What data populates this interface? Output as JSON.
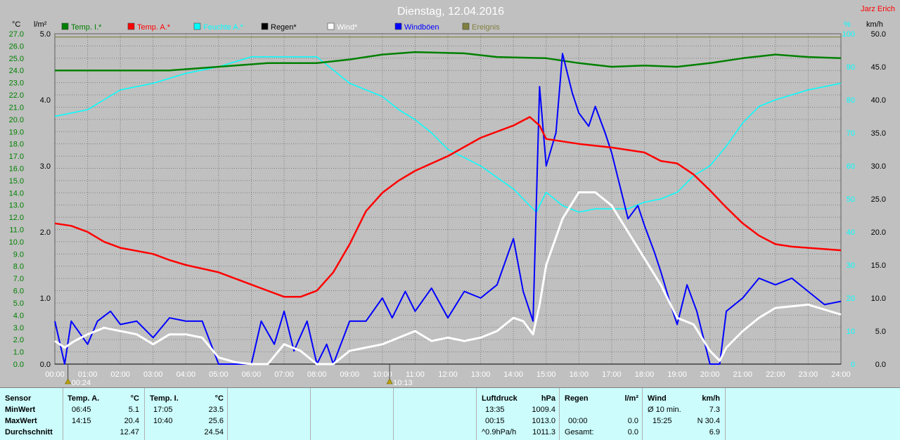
{
  "title": "Dienstag, 12.04.2016",
  "author": "Jarz Erich",
  "colors": {
    "temp_i": "#008000",
    "temp_a": "#ff0000",
    "feuchte_a": "#00ffff",
    "regen": "#000000",
    "wind": "#ffffff",
    "windboeen": "#0000ff",
    "ereignis": "#808040",
    "plot_bg": "#c0c0c0",
    "stats_bg": "#ccfcfc"
  },
  "axes": {
    "unit_temp": "°C",
    "unit_rain": "l/m²",
    "unit_hum": "%",
    "unit_wind": "km/h",
    "temp_labels": [
      "27.0",
      "26.0",
      "25.0",
      "24.0",
      "23.0",
      "22.0",
      "21.0",
      "20.0",
      "19.0",
      "18.0",
      "17.0",
      "16.0",
      "15.0",
      "14.0",
      "13.0",
      "12.0",
      "11.0",
      "10.0",
      "9.0",
      "8.0",
      "7.0",
      "6.0",
      "5.0",
      "4.0",
      "3.0",
      "2.0",
      "1.0",
      "0.0"
    ],
    "rain_labels": [
      "5.0",
      "4.0",
      "3.0",
      "2.0",
      "1.0",
      "0.0"
    ],
    "hum_labels": [
      "100",
      "90",
      "80",
      "70",
      "60",
      "50",
      "40",
      "30",
      "20",
      "10",
      "0"
    ],
    "wind_labels": [
      "50.0",
      "45.0",
      "40.0",
      "35.0",
      "30.0",
      "25.0",
      "20.0",
      "15.0",
      "10.0",
      "5.0",
      "0.0"
    ],
    "time_labels": [
      "00:00",
      "01:00",
      "02:00",
      "03:00",
      "04:00",
      "05:00",
      "06:00",
      "07:00",
      "08:00",
      "09:00",
      "10:00",
      "11:00",
      "12:00",
      "13:00",
      "14:00",
      "15:00",
      "16:00",
      "17:00",
      "18:00",
      "19:00",
      "20:00",
      "21:00",
      "22:00",
      "23:00",
      "24:00"
    ],
    "markers": [
      {
        "time": "00:24",
        "hour": 0.4
      },
      {
        "time": "10:13",
        "hour": 10.22
      }
    ]
  },
  "chart_data": {
    "type": "line",
    "title": "Dienstag, 12.04.2016",
    "x_unit": "hours",
    "xlim": [
      0,
      24
    ],
    "y_temp_lim": [
      0,
      27
    ],
    "y_rain_lim": [
      0,
      5
    ],
    "y_hum_lim": [
      0,
      100
    ],
    "y_wind_lim": [
      0,
      50
    ],
    "grid": true,
    "legend_position": "top",
    "series": [
      {
        "name": "Temp. I.*",
        "axis": "temp",
        "color": "#008000",
        "points": [
          [
            0,
            24.0
          ],
          [
            2,
            24.0
          ],
          [
            3.5,
            24.0
          ],
          [
            5,
            24.3
          ],
          [
            6.5,
            24.6
          ],
          [
            8,
            24.6
          ],
          [
            9,
            24.9
          ],
          [
            10,
            25.3
          ],
          [
            11,
            25.5
          ],
          [
            12.5,
            25.4
          ],
          [
            13.5,
            25.1
          ],
          [
            15,
            25.0
          ],
          [
            16,
            24.6
          ],
          [
            17,
            24.3
          ],
          [
            18,
            24.4
          ],
          [
            19,
            24.3
          ],
          [
            20,
            24.6
          ],
          [
            21,
            25.0
          ],
          [
            22,
            25.3
          ],
          [
            23,
            25.1
          ],
          [
            24,
            25.0
          ]
        ]
      },
      {
        "name": "Temp. A.*",
        "axis": "temp",
        "color": "#ff0000",
        "points": [
          [
            0,
            11.5
          ],
          [
            0.5,
            11.3
          ],
          [
            1,
            10.8
          ],
          [
            1.5,
            10.0
          ],
          [
            2,
            9.5
          ],
          [
            3,
            9.0
          ],
          [
            3.5,
            8.5
          ],
          [
            4,
            8.1
          ],
          [
            5,
            7.5
          ],
          [
            6,
            6.5
          ],
          [
            7,
            5.5
          ],
          [
            7.5,
            5.5
          ],
          [
            8,
            6.0
          ],
          [
            8.5,
            7.5
          ],
          [
            9,
            9.8
          ],
          [
            9.5,
            12.5
          ],
          [
            10,
            14.0
          ],
          [
            10.5,
            15.0
          ],
          [
            11,
            15.8
          ],
          [
            12,
            17.0
          ],
          [
            13,
            18.5
          ],
          [
            14,
            19.5
          ],
          [
            14.5,
            20.2
          ],
          [
            14.8,
            19.5
          ],
          [
            15,
            18.4
          ],
          [
            15.5,
            18.2
          ],
          [
            16,
            18.0
          ],
          [
            17,
            17.7
          ],
          [
            17.5,
            17.5
          ],
          [
            18,
            17.3
          ],
          [
            18.5,
            16.6
          ],
          [
            19,
            16.4
          ],
          [
            19.5,
            15.5
          ],
          [
            20,
            14.2
          ],
          [
            20.5,
            12.8
          ],
          [
            21,
            11.5
          ],
          [
            21.5,
            10.5
          ],
          [
            22,
            9.8
          ],
          [
            22.5,
            9.6
          ],
          [
            23,
            9.5
          ],
          [
            23.5,
            9.4
          ],
          [
            24,
            9.3
          ]
        ]
      },
      {
        "name": "Feuchte A.*",
        "axis": "hum",
        "color": "#00ffff",
        "points": [
          [
            0,
            75
          ],
          [
            1,
            77
          ],
          [
            2,
            83
          ],
          [
            3,
            85
          ],
          [
            4,
            88
          ],
          [
            5,
            90
          ],
          [
            6,
            93
          ],
          [
            7,
            93
          ],
          [
            8,
            93
          ],
          [
            8.5,
            89
          ],
          [
            9,
            85
          ],
          [
            10,
            81
          ],
          [
            10.5,
            77
          ],
          [
            11,
            74
          ],
          [
            11.5,
            70
          ],
          [
            12,
            65
          ],
          [
            13,
            60
          ],
          [
            14,
            53
          ],
          [
            14.3,
            50
          ],
          [
            14.7,
            46
          ],
          [
            15,
            52
          ],
          [
            15.5,
            48
          ],
          [
            16,
            46
          ],
          [
            16.5,
            47
          ],
          [
            17,
            47
          ],
          [
            17.5,
            47
          ],
          [
            18,
            49
          ],
          [
            18.5,
            50
          ],
          [
            19,
            52
          ],
          [
            19.5,
            57
          ],
          [
            20,
            60
          ],
          [
            20.5,
            66
          ],
          [
            21,
            73
          ],
          [
            21.5,
            78
          ],
          [
            22,
            80
          ],
          [
            23,
            83
          ],
          [
            24,
            85
          ]
        ]
      },
      {
        "name": "Regen*",
        "axis": "rain",
        "color": "#000000",
        "points": [
          [
            0,
            0
          ],
          [
            24,
            0
          ]
        ]
      },
      {
        "name": "Wind*",
        "axis": "wind",
        "color": "#ffffff",
        "points": [
          [
            0,
            3.5
          ],
          [
            0.3,
            2.5
          ],
          [
            0.6,
            3.5
          ],
          [
            1,
            4.5
          ],
          [
            1.5,
            5.5
          ],
          [
            2,
            5.0
          ],
          [
            2.5,
            4.5
          ],
          [
            3,
            3.0
          ],
          [
            3.5,
            4.5
          ],
          [
            4,
            4.5
          ],
          [
            4.5,
            4.0
          ],
          [
            5,
            1.0
          ],
          [
            5.5,
            0.3
          ],
          [
            6,
            0.0
          ],
          [
            6.5,
            0.0
          ],
          [
            7,
            3.0
          ],
          [
            7.5,
            2.0
          ],
          [
            8,
            0.0
          ],
          [
            8.5,
            0.0
          ],
          [
            9,
            2.0
          ],
          [
            9.5,
            2.5
          ],
          [
            10,
            3.0
          ],
          [
            11,
            5.0
          ],
          [
            11.5,
            3.5
          ],
          [
            12,
            4.0
          ],
          [
            12.5,
            3.5
          ],
          [
            13,
            4.0
          ],
          [
            13.5,
            5.0
          ],
          [
            14,
            7.0
          ],
          [
            14.3,
            6.5
          ],
          [
            14.6,
            4.5
          ],
          [
            14.8,
            9.0
          ],
          [
            15,
            15.0
          ],
          [
            15.5,
            22.0
          ],
          [
            16,
            26.0
          ],
          [
            16.5,
            26.0
          ],
          [
            17,
            24.0
          ],
          [
            17.5,
            20.0
          ],
          [
            18,
            16.0
          ],
          [
            18.5,
            12.0
          ],
          [
            19,
            7.0
          ],
          [
            19.5,
            6.0
          ],
          [
            20,
            2.0
          ],
          [
            20.3,
            0.5
          ],
          [
            20.5,
            2.5
          ],
          [
            21,
            5.0
          ],
          [
            21.5,
            7.0
          ],
          [
            22,
            8.5
          ],
          [
            23,
            9.0
          ],
          [
            24,
            7.5
          ]
        ]
      },
      {
        "name": "Windböen",
        "axis": "wind",
        "color": "#0000ff",
        "points": [
          [
            0,
            6.5
          ],
          [
            0.3,
            0
          ],
          [
            0.5,
            6.5
          ],
          [
            1,
            3
          ],
          [
            1.3,
            6.5
          ],
          [
            1.7,
            8
          ],
          [
            2,
            6
          ],
          [
            2.5,
            6.5
          ],
          [
            3,
            4
          ],
          [
            3.5,
            7
          ],
          [
            4,
            6.5
          ],
          [
            4.5,
            6.5
          ],
          [
            5,
            0
          ],
          [
            5.5,
            0
          ],
          [
            6,
            0
          ],
          [
            6.3,
            6.5
          ],
          [
            6.7,
            3
          ],
          [
            7,
            8
          ],
          [
            7.3,
            2
          ],
          [
            7.7,
            6.5
          ],
          [
            8,
            0
          ],
          [
            8.3,
            3
          ],
          [
            8.5,
            0
          ],
          [
            9,
            6.5
          ],
          [
            9.5,
            6.5
          ],
          [
            10,
            10
          ],
          [
            10.3,
            7
          ],
          [
            10.7,
            11
          ],
          [
            11,
            8
          ],
          [
            11.5,
            11.5
          ],
          [
            12,
            7
          ],
          [
            12.5,
            11
          ],
          [
            13,
            10
          ],
          [
            13.5,
            12
          ],
          [
            14,
            19
          ],
          [
            14.3,
            11
          ],
          [
            14.6,
            6.5
          ],
          [
            14.8,
            42
          ],
          [
            15,
            30
          ],
          [
            15.3,
            35
          ],
          [
            15.5,
            47
          ],
          [
            15.8,
            41
          ],
          [
            16,
            38
          ],
          [
            16.3,
            36
          ],
          [
            16.5,
            39
          ],
          [
            16.8,
            35
          ],
          [
            17,
            32
          ],
          [
            17.3,
            26
          ],
          [
            17.5,
            22
          ],
          [
            17.8,
            24
          ],
          [
            18,
            21
          ],
          [
            18.3,
            17
          ],
          [
            18.5,
            14
          ],
          [
            18.8,
            9
          ],
          [
            19,
            6
          ],
          [
            19.3,
            12
          ],
          [
            19.6,
            8
          ],
          [
            20,
            0
          ],
          [
            20.3,
            0
          ],
          [
            20.5,
            8
          ],
          [
            21,
            10
          ],
          [
            21.5,
            13
          ],
          [
            22,
            12
          ],
          [
            22.5,
            13
          ],
          [
            23,
            11
          ],
          [
            23.5,
            9
          ],
          [
            24,
            9.5
          ]
        ]
      },
      {
        "name": "Ereignis",
        "axis": "hum",
        "color": "#808040",
        "points": [
          [
            0,
            99
          ],
          [
            24,
            99
          ]
        ]
      }
    ]
  },
  "stats": {
    "sensor": {
      "header": "Sensor",
      "min": "MinWert",
      "max": "MaxWert",
      "avg": "Durchschnitt"
    },
    "temp_a": {
      "header": "Temp. A.",
      "unit": "°C",
      "min_time": "06:45",
      "min_val": "5.1",
      "max_time": "14:15",
      "max_val": "20.4",
      "avg_val": "12.47"
    },
    "temp_i": {
      "header": "Temp. I.",
      "unit": "°C",
      "min_time": "17:05",
      "min_val": "23.5",
      "max_time": "10:40",
      "max_val": "25.6",
      "avg_val": "24.54"
    },
    "luftdruck": {
      "header": "Luftdruck",
      "unit": "hPa",
      "r1_label": "13:35",
      "r1_val": "1009.4",
      "r2_label": "00:15",
      "r2_val": "1013.0",
      "r3_label": "^0.9hPa/h",
      "r3_val": "1011.3"
    },
    "regen": {
      "header": "Regen",
      "unit": "l/m²",
      "r2_label": "00:00",
      "r2_val": "0.0",
      "r3_label": "Gesamt:",
      "r3_val": "0.0"
    },
    "wind": {
      "header": "Wind",
      "unit": "km/h",
      "r1_label": "Ø 10 min.",
      "r1_val": "7.3",
      "r2_label": "15:25",
      "r2_val": "N 30.4",
      "r3_val": "6.9"
    }
  }
}
